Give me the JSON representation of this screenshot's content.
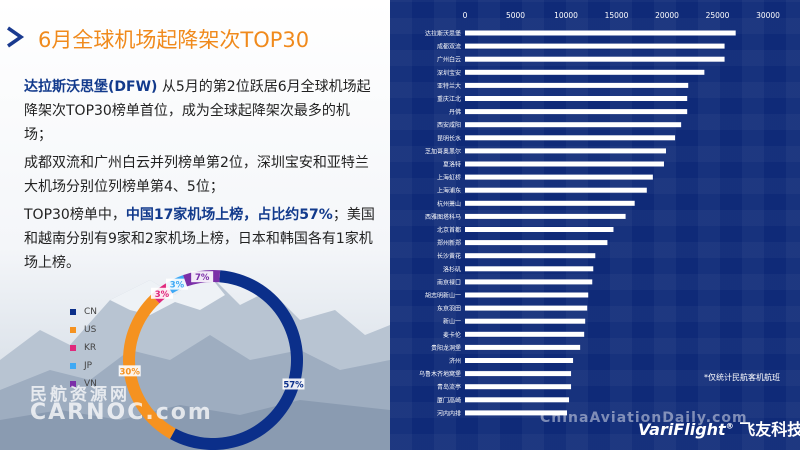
{
  "slide": {
    "title": "6月全球机场起降架次TOP30",
    "p1_bold": "达拉斯沃思堡(DFW)",
    "p1_rest": " 从5月的第2位跃居6月全球机场起降架次TOP30榜单首位，成为全球起降架次最多的机场；",
    "p2": "成都双流和广州白云并列榜单第2位，深圳宝安和亚特兰大机场分别位列榜单第4、5位；",
    "p3_a": "TOP30榜单中，",
    "p3_b": "中国17家机场上榜，占比约57%",
    "p3_c": "；美国和越南分别有9家和2家机场上榜，日本和韩国各有1家机场上榜。"
  },
  "watermarks": {
    "left_cn": "民航资源网",
    "left_en": "CARNOC.com",
    "right": "ChinaAviationDaily.com"
  },
  "note": "*仅统计民航客机航班",
  "brand": {
    "en": "VariFlight",
    "reg": "®",
    "cn": "飞友科技"
  },
  "colors": {
    "CN": "#0b2f8a",
    "US": "#f59220",
    "KR": "#e0287c",
    "JP": "#3fa9f5",
    "VN": "#7b2fa8",
    "bar": "#ffffff",
    "right_bg": "#0f2a78"
  },
  "chart_data": [
    {
      "type": "pie",
      "style": "donut",
      "categories": [
        "CN",
        "US",
        "KR",
        "JP",
        "VN"
      ],
      "values": [
        17,
        9,
        1,
        1,
        2
      ],
      "slice_labels": [
        "57%",
        "30%",
        "3%",
        "3%",
        "7%"
      ],
      "legend_position": "left"
    },
    {
      "type": "bar",
      "orientation": "horizontal",
      "categories": [
        "达拉斯沃思堡",
        "成都双流",
        "广州白云",
        "深圳宝安",
        "亚特兰大",
        "重庆江北",
        "丹佛",
        "西安咸阳",
        "昆明长水",
        "芝加哥奥黑尔",
        "夏洛特",
        "上海虹桥",
        "上海浦东",
        "杭州萧山",
        "西雅图塔科马",
        "北京首都",
        "郑州新郑",
        "长沙黄花",
        "洛杉矶",
        "南京禄口",
        "胡志明新山一",
        "东京羽田",
        "新山一",
        "麦卡伦",
        "贵阳龙洞堡",
        "济州",
        "乌鲁木齐地窝堡",
        "青岛流亭",
        "厦门高崎",
        "河内内排"
      ],
      "values": [
        26800,
        25700,
        25700,
        23700,
        22100,
        22000,
        22000,
        21400,
        20800,
        19900,
        19700,
        18600,
        18000,
        16800,
        15900,
        14700,
        14100,
        12900,
        12700,
        12600,
        12200,
        12100,
        11900,
        11800,
        11400,
        10700,
        10500,
        10500,
        10300,
        10100
      ],
      "xticks": [
        0,
        5000,
        10000,
        15000,
        20000,
        25000,
        30000
      ],
      "xlim": [
        0,
        30000
      ],
      "axis_position": "top",
      "grid": false
    }
  ]
}
